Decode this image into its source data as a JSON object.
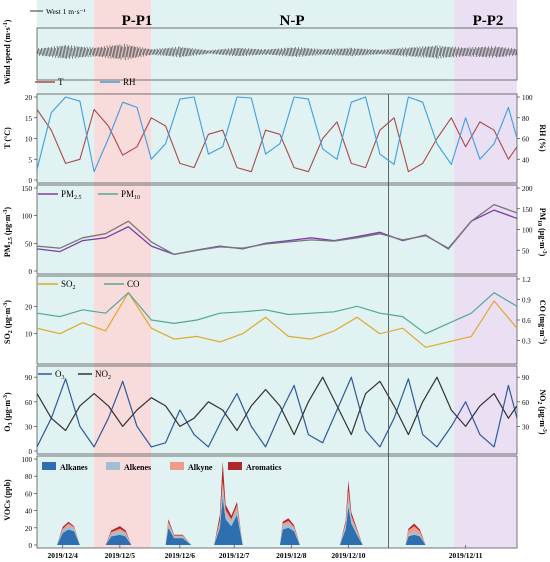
{
  "colors": {
    "shade_pp1": "#f6cfcf",
    "shade_np": "#d6eeec",
    "shade_pp2": "#e3d4ef",
    "wind": "#333333",
    "T": "#a84b4b",
    "RH": "#3f9ee0",
    "PM25": "#7a3fa8",
    "PM10": "#777777",
    "SO2": "#e0a82e",
    "CO": "#52a89a",
    "O3": "#2f5a9c",
    "NO2": "#333333",
    "Alkanes": "#2e6fb0",
    "Alkenes": "#9fbfd6",
    "Alkyne": "#ee9c8a",
    "Aromatics": "#b0282c"
  },
  "periods": [
    {
      "label": "P-P1",
      "start_day": 1,
      "end_day": 2
    },
    {
      "label": "N-P",
      "start_day": 2,
      "end_day": 7.3
    },
    {
      "label": "P-P2",
      "start_day": 7.3,
      "end_day": 8.4
    }
  ],
  "dates": [
    "2019/12/4",
    "2019/12/5",
    "2019/12/6",
    "2019/12/7",
    "2019/12/8",
    "2019/12/10",
    "2019/12/11"
  ],
  "wind_legend": "West 1 m·s⁻¹",
  "chart_data": [
    {
      "type": "line",
      "panel": "wind",
      "ylabel": "Wind speed (m·s⁻¹)",
      "legend": [
        "West 1 m·s⁻¹"
      ],
      "note": "wind barbs, magnitude series",
      "series": [
        {
          "name": "Wind",
          "x": [
            0,
            0.5,
            1,
            1.5,
            2,
            2.5,
            3,
            3.5,
            4,
            4.5,
            5,
            5.5,
            6,
            6.5,
            7,
            7.5,
            8,
            8.4
          ],
          "values": [
            1.2,
            2.4,
            1.5,
            2.8,
            1.0,
            1.8,
            0.6,
            1.5,
            0.9,
            1.7,
            1.0,
            1.4,
            0.8,
            1.6,
            2.2,
            1.5,
            2.0,
            1.1
          ]
        }
      ]
    },
    {
      "type": "line",
      "panel": "met",
      "ylabel": "T (°C)",
      "y2label": "RH (%)",
      "ylim": [
        0,
        20
      ],
      "y2lim": [
        20,
        100
      ],
      "yticks": [
        0,
        5,
        10,
        15,
        20
      ],
      "y2ticks": [
        40,
        60,
        80,
        100
      ],
      "x": [
        0,
        0.25,
        0.5,
        0.75,
        1,
        1.25,
        1.5,
        1.75,
        2,
        2.25,
        2.5,
        2.75,
        3,
        3.25,
        3.5,
        3.75,
        4,
        4.25,
        4.5,
        4.75,
        5,
        5.25,
        5.5,
        5.75,
        6,
        6.25,
        6.5,
        6.75,
        7,
        7.25,
        7.5,
        7.75,
        8,
        8.25,
        8.4
      ],
      "series": [
        {
          "name": "T",
          "axis": "left",
          "values": [
            17,
            12,
            4,
            5,
            17,
            13,
            6,
            8,
            15,
            13,
            4,
            3,
            11,
            12,
            3,
            2,
            12,
            11,
            3,
            2,
            10,
            14,
            4,
            3,
            12,
            15,
            2,
            4,
            10,
            15,
            8,
            14,
            12,
            5,
            8
          ]
        },
        {
          "name": "RH",
          "axis": "right",
          "values": [
            30,
            85,
            100,
            96,
            28,
            60,
            95,
            90,
            40,
            55,
            98,
            100,
            45,
            52,
            100,
            99,
            45,
            55,
            100,
            98,
            50,
            40,
            95,
            100,
            45,
            35,
            100,
            95,
            55,
            35,
            80,
            40,
            55,
            90,
            60
          ]
        }
      ]
    },
    {
      "type": "line",
      "panel": "pm",
      "ylabel": "PM2.5 (μg·m⁻³)",
      "y2label": "PM10 (μg·m⁻³)",
      "ylim": [
        0,
        150
      ],
      "y2lim": [
        0,
        200
      ],
      "yticks": [
        0,
        50,
        100,
        150
      ],
      "y2ticks": [
        50,
        100,
        150,
        200
      ],
      "x": [
        0,
        0.4,
        0.8,
        1.2,
        1.6,
        2,
        2.4,
        2.8,
        3.2,
        3.6,
        4,
        4.4,
        4.8,
        5.2,
        5.6,
        6,
        6.4,
        6.8,
        7.2,
        7.6,
        8,
        8.4
      ],
      "series": [
        {
          "name": "PM2.5",
          "axis": "left",
          "values": [
            40,
            35,
            55,
            60,
            80,
            45,
            30,
            38,
            45,
            40,
            50,
            55,
            60,
            55,
            62,
            70,
            55,
            65,
            40,
            90,
            110,
            95
          ]
        },
        {
          "name": "PM10",
          "axis": "right",
          "values": [
            60,
            55,
            80,
            90,
            120,
            70,
            40,
            50,
            58,
            55,
            65,
            70,
            75,
            72,
            80,
            90,
            75,
            85,
            55,
            120,
            160,
            140
          ]
        }
      ]
    },
    {
      "type": "line",
      "panel": "gas1",
      "ylabel": "SO2 (μg·m⁻³)",
      "y2label": "CO (mg·m⁻³)",
      "ylim": [
        0,
        30
      ],
      "y2lim": [
        0,
        1.2
      ],
      "yticks": [
        10,
        20
      ],
      "y2ticks": [
        0.3,
        0.6,
        0.9,
        1.2
      ],
      "x": [
        0,
        0.4,
        0.8,
        1.2,
        1.6,
        2,
        2.4,
        2.8,
        3.2,
        3.6,
        4,
        4.4,
        4.8,
        5.2,
        5.6,
        6,
        6.4,
        6.8,
        7.2,
        7.6,
        8,
        8.4
      ],
      "series": [
        {
          "name": "SO2",
          "axis": "left",
          "values": [
            12,
            10,
            14,
            11,
            25,
            12,
            8,
            9,
            7,
            10,
            16,
            9,
            8,
            11,
            16,
            10,
            12,
            5,
            7,
            9,
            22,
            12
          ]
        },
        {
          "name": "CO",
          "axis": "right",
          "values": [
            0.7,
            0.65,
            0.75,
            0.7,
            1.0,
            0.6,
            0.55,
            0.6,
            0.7,
            0.72,
            0.75,
            0.68,
            0.7,
            0.72,
            0.8,
            0.7,
            0.65,
            0.4,
            0.55,
            0.7,
            1.0,
            0.8
          ]
        }
      ]
    },
    {
      "type": "line",
      "panel": "gas2",
      "ylabel": "O3 (μg·m⁻³)",
      "y2label": "NO2 (μg·m⁻³)",
      "ylim": [
        0,
        100
      ],
      "y2lim": [
        0,
        100
      ],
      "yticks": [
        0,
        30,
        60,
        90
      ],
      "y2ticks": [
        30,
        60,
        90
      ],
      "x": [
        0,
        0.25,
        0.5,
        0.75,
        1,
        1.25,
        1.5,
        1.75,
        2,
        2.25,
        2.5,
        2.75,
        3,
        3.25,
        3.5,
        3.75,
        4,
        4.25,
        4.5,
        4.75,
        5,
        5.25,
        5.5,
        5.75,
        6,
        6.25,
        6.5,
        6.75,
        7,
        7.25,
        7.5,
        7.75,
        8,
        8.25,
        8.4
      ],
      "series": [
        {
          "name": "O3",
          "axis": "left",
          "values": [
            5,
            40,
            88,
            30,
            5,
            40,
            85,
            30,
            5,
            10,
            50,
            20,
            5,
            40,
            70,
            30,
            5,
            45,
            80,
            20,
            10,
            50,
            90,
            25,
            5,
            40,
            88,
            20,
            5,
            30,
            60,
            20,
            5,
            80,
            40
          ]
        },
        {
          "name": "NO2",
          "axis": "right",
          "values": [
            70,
            40,
            25,
            55,
            70,
            55,
            30,
            50,
            65,
            55,
            30,
            40,
            60,
            50,
            25,
            55,
            75,
            55,
            20,
            60,
            90,
            55,
            20,
            70,
            85,
            55,
            20,
            60,
            90,
            50,
            30,
            55,
            70,
            40,
            55
          ]
        }
      ]
    },
    {
      "type": "area",
      "panel": "voc",
      "ylabel": "VOCs (ppb)",
      "ylim": [
        0,
        100
      ],
      "yticks": [
        0,
        20,
        40,
        60,
        80,
        100
      ],
      "x": [
        0.35,
        0.45,
        0.55,
        0.65,
        0.75,
        1.2,
        1.3,
        1.45,
        1.55,
        1.65,
        2.25,
        2.3,
        2.4,
        2.55,
        2.7,
        3.1,
        3.2,
        3.25,
        3.3,
        3.4,
        3.5,
        3.6,
        4.25,
        4.3,
        4.4,
        4.5,
        4.6,
        5.3,
        5.4,
        5.45,
        5.5,
        5.6,
        5.7,
        6.45,
        6.5,
        6.6,
        6.7,
        6.8
      ],
      "series": [
        {
          "name": "Alkanes",
          "values": [
            0,
            14,
            18,
            16,
            0,
            0,
            10,
            12,
            10,
            0,
            0,
            20,
            8,
            8,
            0,
            0,
            20,
            55,
            30,
            22,
            35,
            0,
            0,
            18,
            20,
            16,
            0,
            0,
            18,
            45,
            25,
            12,
            0,
            0,
            10,
            12,
            10,
            0
          ]
        },
        {
          "name": "Alkenes",
          "values": [
            0,
            3,
            4,
            3,
            0,
            0,
            3,
            4,
            3,
            0,
            0,
            4,
            2,
            2,
            0,
            0,
            5,
            12,
            6,
            5,
            6,
            0,
            0,
            4,
            5,
            3,
            0,
            0,
            4,
            10,
            5,
            3,
            0,
            0,
            2,
            4,
            2,
            0
          ]
        },
        {
          "name": "Alkyne",
          "values": [
            0,
            2,
            3,
            2,
            0,
            0,
            2,
            3,
            2,
            0,
            0,
            3,
            1,
            1,
            0,
            0,
            4,
            8,
            5,
            3,
            5,
            0,
            0,
            3,
            3,
            2,
            0,
            0,
            3,
            8,
            4,
            2,
            0,
            0,
            5,
            6,
            4,
            0
          ]
        },
        {
          "name": "Aromatics",
          "values": [
            0,
            2,
            2,
            1,
            0,
            0,
            2,
            3,
            2,
            0,
            0,
            3,
            1,
            1,
            0,
            0,
            6,
            22,
            6,
            4,
            4,
            0,
            0,
            2,
            3,
            2,
            0,
            0,
            3,
            12,
            4,
            2,
            0,
            0,
            2,
            3,
            2,
            0
          ]
        }
      ]
    }
  ]
}
